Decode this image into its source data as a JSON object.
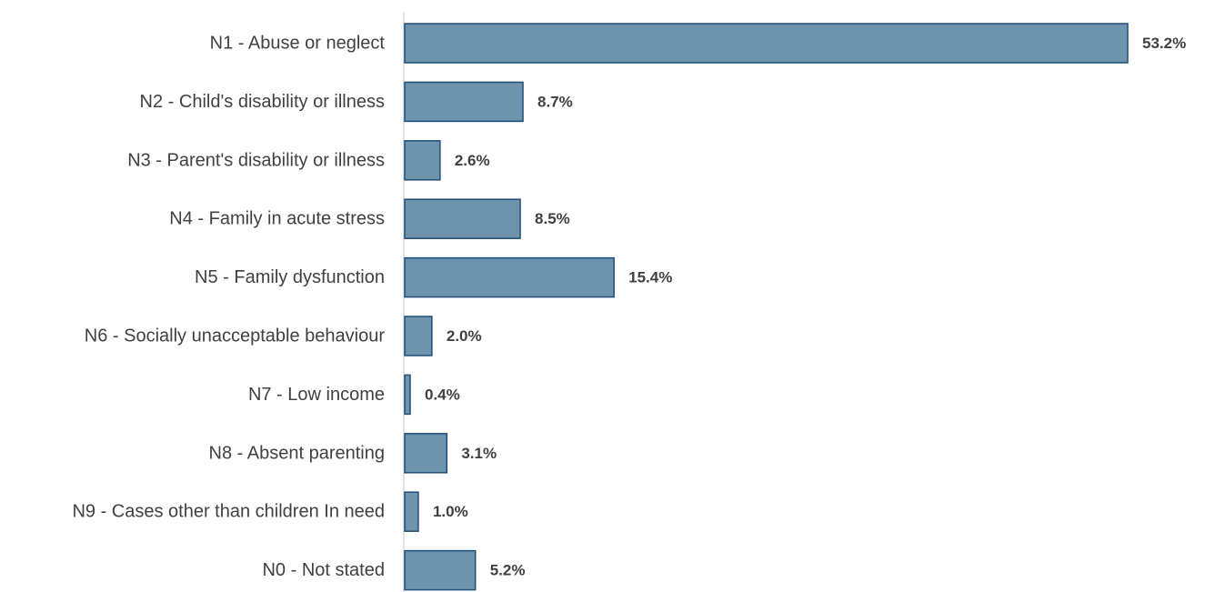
{
  "chart_data": {
    "type": "bar",
    "orientation": "horizontal",
    "categories": [
      "N1 - Abuse or neglect",
      "N2 - Child's disability or illness",
      "N3 - Parent's disability or illness",
      "N4 - Family in acute stress",
      "N5 - Family dysfunction",
      "N6 - Socially unacceptable behaviour",
      "N7 - Low income",
      "N8 - Absent parenting",
      "N9 - Cases other than children In need",
      "N0 - Not stated"
    ],
    "values": [
      53.2,
      8.7,
      2.6,
      8.5,
      15.4,
      2.0,
      0.4,
      3.1,
      1.0,
      5.2
    ],
    "value_labels": [
      "53.2%",
      "8.7%",
      "2.6%",
      "8.5%",
      "15.4%",
      "2.0%",
      "0.4%",
      "3.1%",
      "1.0%",
      "5.2%"
    ],
    "xlim": [
      0,
      53.2
    ],
    "grid": false,
    "legend": "none",
    "colors": {
      "bar_fill": "#6e93ad",
      "bar_stroke": "#1f4e79",
      "axis": "#d9d9d9",
      "text": "#404040"
    }
  }
}
